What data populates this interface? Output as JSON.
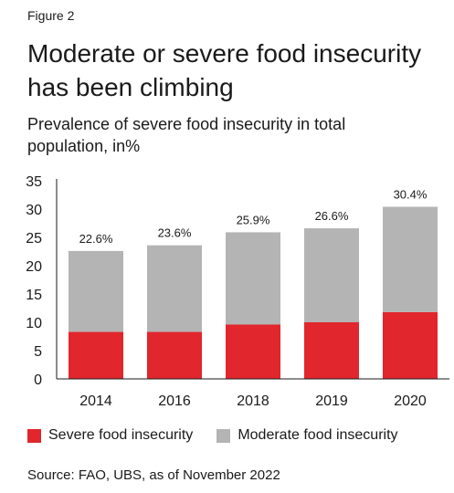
{
  "figure_label": "Figure 2",
  "title": "Moderate or severe food insecurity has been climbing",
  "subtitle": "Prevalence of severe food insecurity in total population, in%",
  "source": "Source: FAO, UBS, as of November 2022",
  "chart_data": {
    "type": "bar",
    "stacked": true,
    "categories": [
      "2014",
      "2016",
      "2018",
      "2019",
      "2020"
    ],
    "series": [
      {
        "name": "Severe food insecurity",
        "color": "#e1262d",
        "values": [
          8.3,
          8.3,
          9.6,
          10.0,
          11.8
        ]
      },
      {
        "name": "Moderate food insecurity",
        "color": "#b4b4b4",
        "values": [
          14.3,
          15.3,
          16.3,
          16.6,
          18.6
        ]
      }
    ],
    "totals": [
      22.6,
      23.6,
      25.9,
      26.6,
      30.4
    ],
    "total_labels": [
      "22.6%",
      "23.6%",
      "25.9%",
      "26.6%",
      "30.4%"
    ],
    "ylim": [
      0,
      35
    ],
    "yticks": [
      0,
      5,
      10,
      15,
      20,
      25,
      30,
      35
    ],
    "grid": false,
    "legend_position": "bottom"
  }
}
